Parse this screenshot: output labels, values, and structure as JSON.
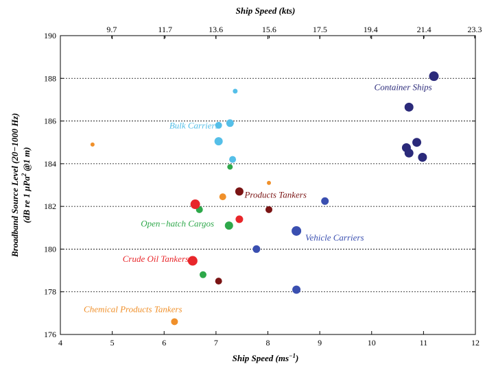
{
  "chart_data": {
    "type": "scatter",
    "xlabel": "Ship Speed (ms",
    "xlabel_sup": "−1",
    "xlabel_close": ")",
    "x2label": "Ship Speed (kts)",
    "ylabel_line1": "Broadband Source Level (20−1000 Hz)",
    "ylabel_line2_prefix": "(dB re 1 μPa",
    "ylabel_line2_sup": "2",
    "ylabel_line2_suffix": " @1 m)",
    "xlim": [
      4,
      12
    ],
    "ylim": [
      176,
      190
    ],
    "x_ticks": [
      4,
      5,
      6,
      7,
      8,
      9,
      10,
      11,
      12
    ],
    "y_ticks": [
      176,
      178,
      180,
      182,
      184,
      186,
      188,
      190
    ],
    "x2_ticks": [
      "9.7",
      "11.7",
      "13.6",
      "15.6",
      "17.5",
      "19.4",
      "21.4",
      "23.3"
    ],
    "grid": "horizontal dotted",
    "series": [
      {
        "name": "Container Ships",
        "color": "#2b2a7a",
        "points": [
          [
            11.2,
            188.1,
            7
          ],
          [
            10.72,
            186.65,
            6.5
          ],
          [
            10.87,
            185.0,
            6.5
          ],
          [
            10.67,
            184.75,
            6.5
          ],
          [
            10.72,
            184.5,
            6.5
          ],
          [
            10.98,
            184.3,
            6.5
          ]
        ]
      },
      {
        "name": "Bulk Carriers",
        "color": "#55bfe8",
        "points": [
          [
            7.37,
            187.4,
            3.5
          ],
          [
            7.27,
            185.9,
            5.5
          ],
          [
            7.05,
            185.8,
            5
          ],
          [
            7.05,
            185.05,
            6
          ],
          [
            7.32,
            184.2,
            5
          ]
        ]
      },
      {
        "name": "Products Tankers",
        "color": "#7a1414",
        "points": [
          [
            7.45,
            182.7,
            6
          ],
          [
            8.02,
            181.85,
            5
          ],
          [
            7.05,
            178.5,
            5
          ]
        ]
      },
      {
        "name": "Vehicle Carriers",
        "color": "#3a4fb0",
        "points": [
          [
            9.1,
            182.25,
            5.5
          ],
          [
            8.55,
            180.85,
            7
          ],
          [
            7.78,
            180.0,
            5.5
          ],
          [
            8.55,
            178.1,
            6
          ]
        ]
      },
      {
        "name": "Open−hatch Cargos",
        "color": "#2ea84a",
        "points": [
          [
            7.27,
            183.85,
            4
          ],
          [
            6.68,
            181.85,
            5
          ],
          [
            7.25,
            181.1,
            6
          ],
          [
            6.75,
            178.8,
            5
          ]
        ]
      },
      {
        "name": "Crude Oil Tankers",
        "color": "#e8262a",
        "points": [
          [
            6.6,
            182.1,
            7
          ],
          [
            7.45,
            181.4,
            5.5
          ],
          [
            6.55,
            179.45,
            7
          ]
        ]
      },
      {
        "name": "Chemical Products Tankers",
        "color": "#f0902a",
        "points": [
          [
            4.62,
            184.9,
            3
          ],
          [
            7.13,
            182.45,
            5
          ],
          [
            8.02,
            183.1,
            3
          ],
          [
            6.2,
            176.6,
            5
          ]
        ]
      }
    ],
    "annotations": [
      {
        "text": "Container Ships",
        "series": "Container Ships",
        "x": 10.05,
        "y": 187.45
      },
      {
        "text": "Bulk Carriers",
        "series": "Bulk Carriers",
        "x": 6.1,
        "y": 185.65
      },
      {
        "text": "Products Tankers",
        "series": "Products Tankers",
        "x": 7.55,
        "y": 182.4
      },
      {
        "text": "Vehicle Carriers",
        "series": "Vehicle Carriers",
        "x": 8.72,
        "y": 180.4
      },
      {
        "text": "Open−hatch Cargos",
        "series": "Open−hatch Cargos",
        "x": 5.55,
        "y": 181.05
      },
      {
        "text": "Crude Oil Tankers",
        "series": "Crude Oil Tankers",
        "x": 5.2,
        "y": 179.4
      },
      {
        "text": "Chemical Products Tankers",
        "series": "Chemical Products Tankers",
        "x": 4.45,
        "y": 177.05
      }
    ]
  }
}
